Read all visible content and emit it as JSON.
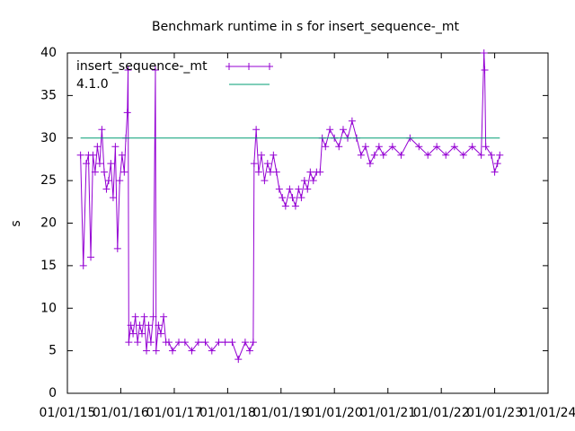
{
  "chart_data": {
    "type": "line",
    "title": "Benchmark runtime in s for insert_sequence-_mt",
    "ylabel": "s",
    "xlim": [
      "01/01/15",
      "01/01/24"
    ],
    "xticks": [
      "01/01/15",
      "01/01/16",
      "01/01/17",
      "01/01/18",
      "01/01/19",
      "01/01/20",
      "01/01/21",
      "01/01/22",
      "01/01/23",
      "01/01/24"
    ],
    "ylim": [
      0,
      40
    ],
    "yticks": [
      0,
      5,
      10,
      15,
      20,
      25,
      30,
      35,
      40
    ],
    "legend": "top-left",
    "series": [
      {
        "name": "insert_sequence-_mt",
        "color": "#9400d3",
        "marker": "+",
        "x": [
          "04/01/15",
          "04/20/15",
          "05/10/15",
          "05/25/15",
          "06/10/15",
          "06/25/15",
          "07/10/15",
          "07/25/15",
          "08/10/15",
          "08/25/15",
          "09/10/15",
          "09/25/15",
          "10/10/15",
          "10/25/15",
          "11/10/15",
          "11/25/15",
          "12/10/15",
          "12/25/15",
          "01/10/16",
          "01/25/16",
          "02/05/16",
          "02/15/16",
          "02/20/16",
          "02/25/16",
          "03/10/16",
          "03/25/16",
          "04/10/16",
          "04/25/16",
          "05/10/16",
          "05/25/16",
          "06/10/16",
          "06/25/16",
          "07/10/16",
          "07/25/16",
          "08/10/16",
          "08/25/16",
          "08/30/16",
          "09/15/16",
          "10/01/16",
          "10/20/16",
          "11/05/16",
          "11/25/16",
          "12/20/16",
          "02/01/17",
          "03/15/17",
          "05/01/17",
          "06/15/17",
          "08/01/17",
          "09/15/17",
          "11/01/17",
          "12/15/17",
          "02/01/18",
          "03/15/18",
          "05/01/18",
          "06/01/18",
          "06/25/18",
          "07/01/18",
          "07/15/18",
          "08/01/18",
          "08/20/18",
          "09/10/18",
          "10/01/18",
          "10/20/18",
          "11/10/18",
          "12/01/18",
          "12/20/18",
          "01/10/19",
          "02/01/19",
          "03/01/19",
          "03/20/19",
          "04/10/19",
          "05/01/19",
          "05/20/19",
          "06/10/19",
          "07/01/19",
          "07/20/19",
          "08/10/19",
          "09/01/19",
          "09/25/19",
          "10/10/19",
          "11/01/19",
          "12/01/19",
          "01/01/20",
          "02/01/20",
          "03/01/20",
          "04/01/20",
          "05/01/20",
          "06/01/20",
          "07/01/20",
          "08/01/20",
          "09/01/20",
          "10/01/20",
          "11/01/20",
          "12/01/20",
          "02/01/21",
          "04/01/21",
          "06/01/21",
          "08/01/21",
          "10/01/21",
          "12/01/21",
          "02/01/22",
          "04/01/22",
          "06/01/22",
          "08/01/22",
          "10/01/22",
          "10/20/22",
          "10/25/22",
          "11/01/22",
          "12/10/22",
          "01/01/23",
          "01/20/23",
          "02/05/23"
        ],
        "values": [
          28,
          15,
          27,
          28,
          16,
          28,
          26,
          29,
          27,
          31,
          26,
          24,
          25,
          27,
          23,
          29,
          17,
          25,
          28,
          26,
          30,
          33,
          38,
          6,
          8,
          7,
          9,
          6,
          8,
          7,
          9,
          5,
          8,
          6,
          9,
          38,
          5,
          8,
          7,
          9,
          6,
          6,
          5,
          6,
          6,
          5,
          6,
          6,
          5,
          6,
          6,
          6,
          4,
          6,
          5,
          6,
          27,
          31,
          26,
          28,
          25,
          27,
          26,
          28,
          26,
          24,
          23,
          22,
          24,
          23,
          22,
          24,
          23,
          25,
          24,
          26,
          25,
          26,
          26,
          30,
          29,
          31,
          30,
          29,
          31,
          30,
          32,
          30,
          28,
          29,
          27,
          28,
          29,
          28,
          29,
          28,
          30,
          29,
          28,
          29,
          28,
          29,
          28,
          29,
          28,
          40,
          38,
          29,
          28,
          26,
          27,
          28
        ]
      },
      {
        "name": "4.1.0",
        "color": "#009e73",
        "x": [
          "04/01/15",
          "02/05/23"
        ],
        "values": [
          30,
          30
        ]
      }
    ]
  }
}
